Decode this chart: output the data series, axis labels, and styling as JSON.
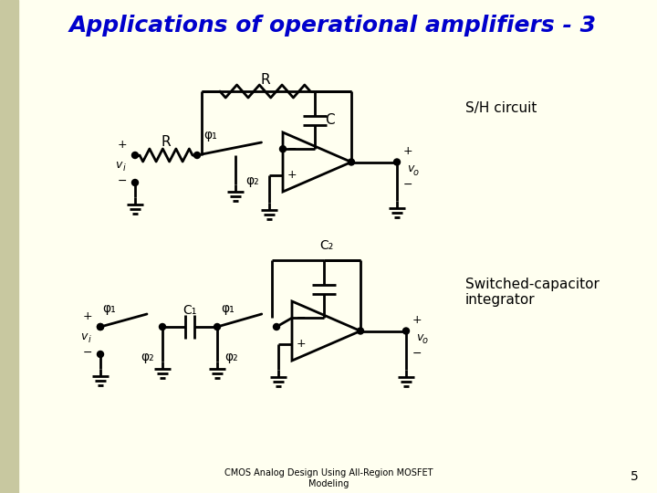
{
  "title": "Applications of operational amplifiers - 3",
  "title_color": "#0000CC",
  "title_fontsize": 18,
  "bg_color": "#FFFFF0",
  "left_bar_color": "#C8C8A0",
  "footer_text": "CMOS Analog Design Using All-Region MOSFET\nModeling",
  "footer_page": "5",
  "sh_label": "S/H circuit",
  "sc_label": "Switched-capacitor\nintegrator"
}
